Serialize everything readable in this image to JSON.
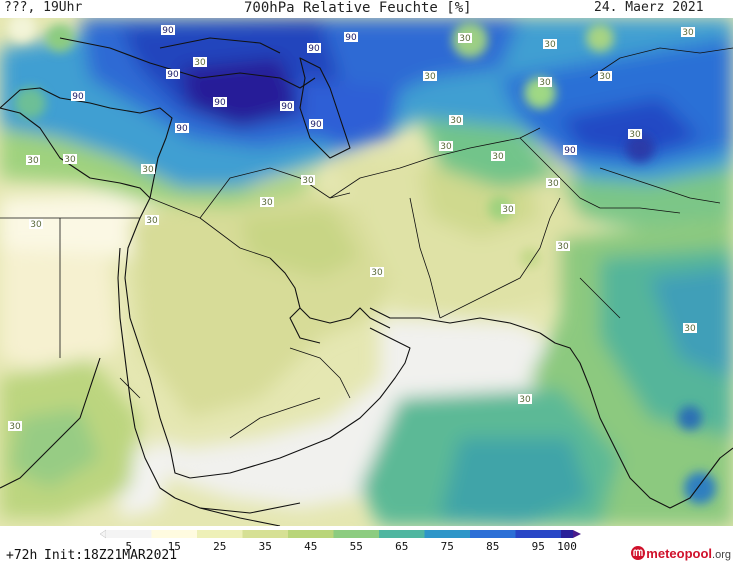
{
  "header": {
    "left": "???, 19Uhr",
    "title": "700hPa Relative Feuchte [%]",
    "date": "24. Maerz 2021"
  },
  "footer": {
    "forecast": "+72h",
    "init": "Init:18Z21MAR2021"
  },
  "logo": {
    "name": "meteopool",
    "suffix": ".org"
  },
  "colorbar": {
    "ticks": [
      "5",
      "15",
      "25",
      "35",
      "45",
      "55",
      "65",
      "75",
      "85",
      "95",
      "100"
    ],
    "colors": [
      "#f4f4f4",
      "#fffbe0",
      "#eef0b8",
      "#d6e095",
      "#b9d57a",
      "#8ccc80",
      "#4fb6a0",
      "#2e96c8",
      "#2c6fd6",
      "#2846c6",
      "#2a209a",
      "#4a1a8a"
    ]
  },
  "contour_labels": [
    {
      "text": "90"
    },
    {
      "text": "90"
    },
    {
      "text": "90"
    },
    {
      "text": "90"
    },
    {
      "text": "90"
    },
    {
      "text": "90"
    },
    {
      "text": "90"
    },
    {
      "text": "90"
    },
    {
      "text": "90"
    },
    {
      "text": "90"
    },
    {
      "text": "30"
    },
    {
      "text": "30"
    },
    {
      "text": "30"
    },
    {
      "text": "30"
    },
    {
      "text": "30"
    },
    {
      "text": "30"
    },
    {
      "text": "30"
    },
    {
      "text": "30"
    },
    {
      "text": "30"
    },
    {
      "text": "30"
    },
    {
      "text": "30"
    },
    {
      "text": "30"
    },
    {
      "text": "30"
    },
    {
      "text": "30"
    },
    {
      "text": "30"
    },
    {
      "text": "30"
    },
    {
      "text": "30"
    },
    {
      "text": "30"
    },
    {
      "text": "30"
    },
    {
      "text": "30"
    },
    {
      "text": "30"
    },
    {
      "text": "30"
    },
    {
      "text": "30"
    },
    {
      "text": "30"
    },
    {
      "text": "30"
    }
  ]
}
